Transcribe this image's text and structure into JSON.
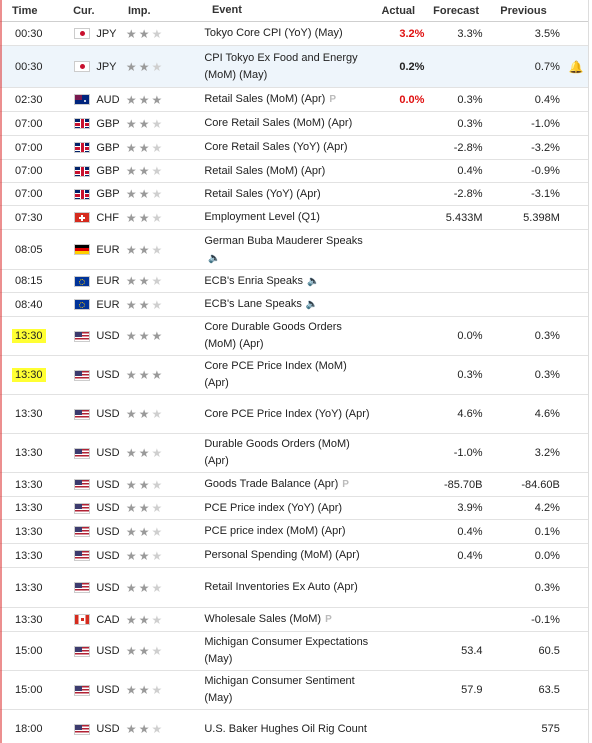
{
  "header": {
    "time": "Time",
    "currency": "Cur.",
    "importance": "Imp.",
    "event": "Event",
    "actual": "Actual",
    "forecast": "Forecast",
    "previous": "Previous"
  },
  "rows": [
    {
      "time": "00:30",
      "cur": "JPY",
      "flag": "jpy",
      "stars": 2,
      "event": "Tokyo Core CPI (YoY) (May)",
      "actual": "3.2%",
      "actual_color": "red",
      "forecast": "3.3%",
      "previous": "3.5%",
      "h": 24
    },
    {
      "time": "00:30",
      "cur": "JPY",
      "flag": "jpy",
      "stars": 2,
      "event": "CPI Tokyo Ex Food and Energy (MoM) (May)",
      "actual": "0.2%",
      "actual_color": "black",
      "forecast": "",
      "previous": "0.7%",
      "h": 42,
      "highlight": true,
      "alert": true
    },
    {
      "time": "02:30",
      "cur": "AUD",
      "flag": "aud",
      "stars": 3,
      "event": "Retail Sales (MoM) (Apr)",
      "actual": "0.0%",
      "actual_color": "red",
      "forecast": "0.3%",
      "previous": "0.4%",
      "h": 24,
      "prelim": true
    },
    {
      "time": "07:00",
      "cur": "GBP",
      "flag": "gbp",
      "stars": 2,
      "event": "Core Retail Sales (MoM) (Apr)",
      "actual": "",
      "forecast": "0.3%",
      "previous": "-1.0%",
      "h": 24
    },
    {
      "time": "07:00",
      "cur": "GBP",
      "flag": "gbp",
      "stars": 2,
      "event": "Core Retail Sales (YoY) (Apr)",
      "actual": "",
      "forecast": "-2.8%",
      "previous": "-3.2%",
      "h": 24
    },
    {
      "time": "07:00",
      "cur": "GBP",
      "flag": "gbp",
      "stars": 2,
      "event": "Retail Sales (MoM) (Apr)",
      "actual": "",
      "forecast": "0.4%",
      "previous": "-0.9%",
      "h": 23
    },
    {
      "time": "07:00",
      "cur": "GBP",
      "flag": "gbp",
      "stars": 2,
      "event": "Retail Sales (YoY) (Apr)",
      "actual": "",
      "forecast": "-2.8%",
      "previous": "-3.1%",
      "h": 23
    },
    {
      "time": "07:30",
      "cur": "CHF",
      "flag": "chf",
      "stars": 2,
      "event": "Employment Level (Q1)",
      "actual": "",
      "forecast": "5.433M",
      "previous": "5.398M",
      "h": 24
    },
    {
      "time": "08:05",
      "cur": "EUR",
      "flag": "eur-de",
      "stars": 2,
      "event": "German Buba Mauderer Speaks",
      "actual": "",
      "forecast": "",
      "previous": "",
      "h": 40,
      "sound": true,
      "sound_newline": true
    },
    {
      "time": "08:15",
      "cur": "EUR",
      "flag": "eur",
      "stars": 2,
      "event": "ECB's Enria Speaks",
      "actual": "",
      "forecast": "",
      "previous": "",
      "h": 23,
      "sound": true
    },
    {
      "time": "08:40",
      "cur": "EUR",
      "flag": "eur",
      "stars": 2,
      "event": "ECB's Lane Speaks",
      "actual": "",
      "forecast": "",
      "previous": "",
      "h": 24,
      "sound": true
    },
    {
      "time": "13:30",
      "cur": "USD",
      "flag": "usd",
      "stars": 3,
      "event": "Core Durable Goods Orders (MoM) (Apr)",
      "actual": "",
      "forecast": "0.0%",
      "previous": "0.3%",
      "h": 39,
      "mark": "yellow"
    },
    {
      "time": "13:30",
      "cur": "USD",
      "flag": "usd",
      "stars": 3,
      "event": "Core PCE Price Index (MoM) (Apr)",
      "actual": "",
      "forecast": "0.3%",
      "previous": "0.3%",
      "h": 39,
      "mark": "yellow"
    },
    {
      "time": "13:30",
      "cur": "USD",
      "flag": "usd",
      "stars": 2,
      "event": "Core PCE Price Index (YoY) (Apr)",
      "actual": "",
      "forecast": "4.6%",
      "previous": "4.6%",
      "h": 39
    },
    {
      "time": "13:30",
      "cur": "USD",
      "flag": "usd",
      "stars": 2,
      "event": "Durable Goods Orders (MoM) (Apr)",
      "actual": "",
      "forecast": "-1.0%",
      "previous": "3.2%",
      "h": 39
    },
    {
      "time": "13:30",
      "cur": "USD",
      "flag": "usd",
      "stars": 2,
      "event": "Goods Trade Balance (Apr)",
      "actual": "",
      "forecast": "-85.70B",
      "previous": "-84.60B",
      "h": 24,
      "prelim": true
    },
    {
      "time": "13:30",
      "cur": "USD",
      "flag": "usd",
      "stars": 2,
      "event": "PCE Price index (YoY) (Apr)",
      "actual": "",
      "forecast": "3.9%",
      "previous": "4.2%",
      "h": 23
    },
    {
      "time": "13:30",
      "cur": "USD",
      "flag": "usd",
      "stars": 2,
      "event": "PCE price index (MoM) (Apr)",
      "actual": "",
      "forecast": "0.4%",
      "previous": "0.1%",
      "h": 24
    },
    {
      "time": "13:30",
      "cur": "USD",
      "flag": "usd",
      "stars": 2,
      "event": "Personal Spending (MoM) (Apr)",
      "actual": "",
      "forecast": "0.4%",
      "previous": "0.0%",
      "h": 24
    },
    {
      "time": "13:30",
      "cur": "USD",
      "flag": "usd",
      "stars": 2,
      "event": "Retail Inventories Ex Auto (Apr)",
      "actual": "",
      "forecast": "",
      "previous": "0.3%",
      "h": 40
    },
    {
      "time": "13:30",
      "cur": "CAD",
      "flag": "cad",
      "stars": 2,
      "event": "Wholesale Sales (MoM)",
      "actual": "",
      "forecast": "",
      "previous": "-0.1%",
      "h": 24,
      "prelim": true
    },
    {
      "time": "15:00",
      "cur": "USD",
      "flag": "usd",
      "stars": 2,
      "event": "Michigan Consumer Expectations (May)",
      "actual": "",
      "forecast": "53.4",
      "previous": "60.5",
      "h": 39
    },
    {
      "time": "15:00",
      "cur": "USD",
      "flag": "usd",
      "stars": 2,
      "event": "Michigan Consumer Sentiment (May)",
      "actual": "",
      "forecast": "57.9",
      "previous": "63.5",
      "h": 39
    },
    {
      "time": "18:00",
      "cur": "USD",
      "flag": "usd",
      "stars": 2,
      "event": "U.S. Baker Hughes Oil Rig Count",
      "actual": "",
      "forecast": "",
      "previous": "575",
      "h": 39
    }
  ],
  "icons": {
    "star": "star-icon",
    "sound": "speaker-icon",
    "prelim": "preliminary-P-icon",
    "alert": "bell-plus-icon"
  },
  "colors": {
    "actual_red": "#e01010",
    "highlight_row": "#eef5fb",
    "marker_yellow": "#ffff33"
  }
}
